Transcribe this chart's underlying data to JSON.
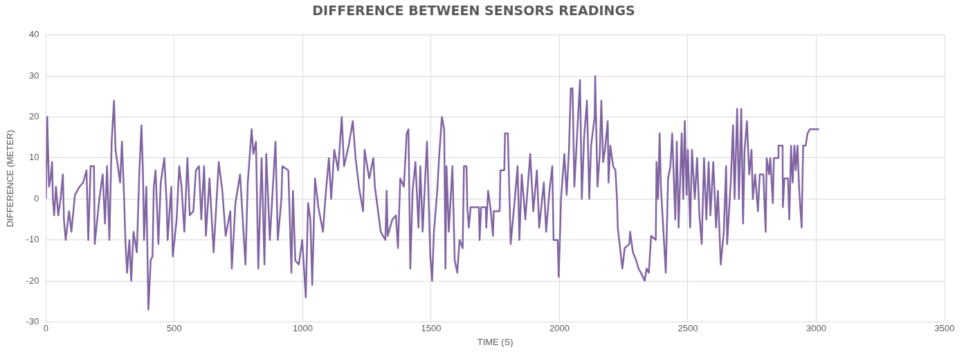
{
  "chart_data": {
    "type": "line",
    "title": "DIFFERENCE BETWEEN SENSORS READINGS",
    "xlabel": "TIME (S)",
    "ylabel": "DIFFERENCE (METER)",
    "x": [
      0,
      5,
      9,
      12,
      18,
      24,
      27,
      32,
      39,
      48,
      57,
      66,
      70,
      77,
      90,
      99,
      113,
      131,
      145,
      158,
      165,
      174,
      187,
      190,
      208,
      221,
      230,
      238,
      247,
      256,
      265,
      271,
      289,
      296,
      304,
      310,
      316,
      325,
      332,
      341,
      354,
      364,
      372,
      378,
      382,
      391,
      399,
      408,
      415,
      420,
      427,
      438,
      447,
      461,
      470,
      474,
      488,
      494,
      509,
      519,
      528,
      539,
      551,
      560,
      574,
      584,
      596,
      605,
      616,
      623,
      637,
      653,
      673,
      687,
      700,
      718,
      724,
      738,
      756,
      777,
      786,
      801,
      808,
      818,
      827,
      840,
      851,
      858,
      872,
      894,
      903,
      917,
      921,
      944,
      956,
      962,
      971,
      985,
      998,
      1012,
      1021,
      1030,
      1037,
      1048,
      1061,
      1079,
      1088,
      1102,
      1111,
      1123,
      1138,
      1152,
      1161,
      1179,
      1195,
      1206,
      1219,
      1235,
      1241,
      1259,
      1275,
      1281,
      1304,
      1322,
      1327,
      1331,
      1349,
      1363,
      1371,
      1380,
      1394,
      1405,
      1412,
      1419,
      1428,
      1439,
      1451,
      1458,
      1467,
      1484,
      1497,
      1504,
      1511,
      1524,
      1531,
      1542,
      1551,
      1556,
      1560,
      1569,
      1583,
      1592,
      1602,
      1611,
      1623,
      1628,
      1638,
      1641,
      1647,
      1654,
      1686,
      1689,
      1695,
      1713,
      1715,
      1722,
      1731,
      1741,
      1744,
      1767,
      1770,
      1785,
      1788,
      1799,
      1803,
      1810,
      1826,
      1837,
      1844,
      1853,
      1867,
      1886,
      1898,
      1912,
      1921,
      1939,
      1948,
      1961,
      1972,
      1977,
      1993,
      1997,
      2002,
      2006,
      2019,
      2028,
      2037,
      2044,
      2051,
      2058,
      2069,
      2080,
      2087,
      2096,
      2107,
      2116,
      2123,
      2137,
      2139,
      2148,
      2157,
      2163,
      2170,
      2177,
      2188,
      2191,
      2198,
      2209,
      2218,
      2224,
      2227,
      2245,
      2254,
      2272,
      2275,
      2286,
      2299,
      2308,
      2317,
      2332,
      2339,
      2348,
      2357,
      2375,
      2378,
      2384,
      2390,
      2395,
      2414,
      2423,
      2432,
      2439,
      2451,
      2457,
      2464,
      2476,
      2482,
      2488,
      2495,
      2500,
      2509,
      2516,
      2527,
      2536,
      2545,
      2554,
      2563,
      2572,
      2581,
      2588,
      2599,
      2610,
      2617,
      2628,
      2640,
      2649,
      2653,
      2667,
      2676,
      2682,
      2692,
      2699,
      2708,
      2715,
      2721,
      2730,
      2739,
      2748,
      2753,
      2762,
      2773,
      2780,
      2794,
      2803,
      2807,
      2816,
      2821,
      2831,
      2835,
      2851,
      2853,
      2869,
      2870,
      2876,
      2890,
      2895,
      2902,
      2908,
      2915,
      2920,
      2927,
      2933,
      2943,
      2949,
      2959,
      2966,
      2975,
      2997,
      3011
    ],
    "values": [
      0,
      20,
      10,
      3,
      5,
      9,
      0,
      -4,
      3,
      -4,
      0,
      6,
      -5,
      -10,
      -3,
      -8,
      1,
      3,
      4,
      7,
      -10,
      8,
      8,
      -11,
      0,
      6,
      -6,
      8,
      -10,
      14,
      24,
      12,
      4,
      14,
      1,
      -11,
      -18,
      -10,
      -20,
      -8,
      -13,
      7,
      18,
      6,
      -10,
      3,
      -27,
      -15,
      -14,
      3,
      7,
      -11,
      4,
      10,
      -1,
      -10,
      3,
      -14,
      -5,
      8,
      3,
      -8,
      10,
      -4,
      -3,
      7,
      8,
      -5,
      8,
      -9,
      5,
      -13,
      9,
      2,
      -9,
      -3,
      -17,
      -1,
      6,
      -16,
      4,
      17,
      11,
      14,
      -17,
      10,
      -16,
      11,
      -10,
      14,
      -10,
      0,
      8,
      7,
      -18,
      2,
      -15,
      -16,
      -10,
      -24,
      -1,
      -5,
      -21,
      5,
      -2,
      -8,
      0,
      10,
      0,
      12,
      7,
      20,
      8,
      13,
      19,
      10,
      3,
      -3,
      12,
      5,
      10,
      3,
      -8,
      -10,
      2,
      -9,
      -5,
      -4,
      -12,
      5,
      3,
      16,
      17,
      -17,
      2,
      9,
      -7,
      8,
      -8,
      14,
      -14,
      -20,
      -8,
      2,
      10,
      20,
      17,
      -17,
      8,
      -8,
      8,
      -15,
      -18,
      -10,
      -12,
      8,
      8,
      -2,
      -7,
      -2,
      -2,
      -10,
      -2,
      -2,
      -7,
      2,
      -2,
      -9,
      -3,
      -3,
      7,
      7,
      16,
      16,
      6,
      -11,
      0,
      8,
      -10,
      6,
      -5,
      11,
      -3,
      7,
      -7,
      4,
      -8,
      2,
      8,
      -10,
      -10,
      -19,
      -9,
      0,
      11,
      1,
      12,
      27,
      27,
      3,
      16,
      29,
      0,
      15,
      24,
      0,
      13,
      20,
      30,
      3,
      11,
      24,
      9,
      12,
      19,
      4,
      13,
      8,
      7,
      0,
      -7,
      -17,
      -12,
      -11,
      -8,
      -13,
      -15,
      -17,
      -18,
      -20,
      -17,
      -18,
      -9,
      -10,
      9,
      0,
      16,
      3,
      -18,
      5,
      8,
      16,
      -5,
      14,
      -7,
      16,
      0,
      19,
      1,
      12,
      -7,
      12,
      0,
      10,
      -4,
      -11,
      10,
      -5,
      9,
      -4,
      9,
      -7,
      2,
      -16,
      -8,
      8,
      -11,
      4,
      18,
      0,
      22,
      0,
      22,
      -6,
      12,
      19,
      6,
      12,
      0,
      6,
      -3,
      6,
      6,
      -8,
      10,
      6,
      10,
      -1,
      10,
      10,
      13,
      13,
      -2,
      5,
      5,
      -5,
      13,
      4,
      13,
      7,
      13,
      3,
      -7,
      13,
      13,
      16,
      17,
      17,
      17
    ],
    "color": "#8064a2",
    "marker": "none",
    "line_style": "solid",
    "grid": true,
    "legend": false,
    "xlim": [
      0,
      3500
    ],
    "xticks": [
      0,
      500,
      1000,
      1500,
      2000,
      2500,
      3000,
      3500
    ],
    "ylim": [
      -30,
      40
    ],
    "yticks": [
      -30,
      -20,
      -10,
      0,
      10,
      20,
      30,
      40
    ]
  }
}
